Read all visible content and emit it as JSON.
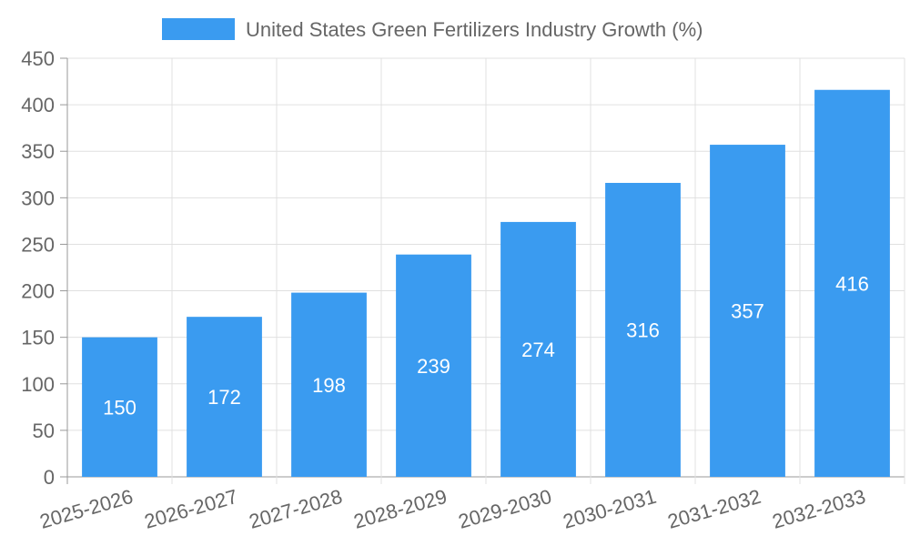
{
  "chart_data": {
    "type": "bar",
    "categories": [
      "2025-2026",
      "2026-2027",
      "2027-2028",
      "2028-2029",
      "2029-2030",
      "2030-2031",
      "2031-2032",
      "2032-2033"
    ],
    "series": [
      {
        "name": "United States Green Fertilizers Industry Growth (%)",
        "values": [
          150,
          172,
          198,
          239,
          274,
          316,
          357,
          416
        ],
        "color": "#3a9bf0"
      }
    ],
    "ylim": [
      0,
      450
    ],
    "y_ticks": [
      0,
      50,
      100,
      150,
      200,
      250,
      300,
      350,
      400,
      450
    ],
    "grid": true,
    "legend_position": "top",
    "data_labels": true,
    "x_tick_rotation": "slanted"
  }
}
